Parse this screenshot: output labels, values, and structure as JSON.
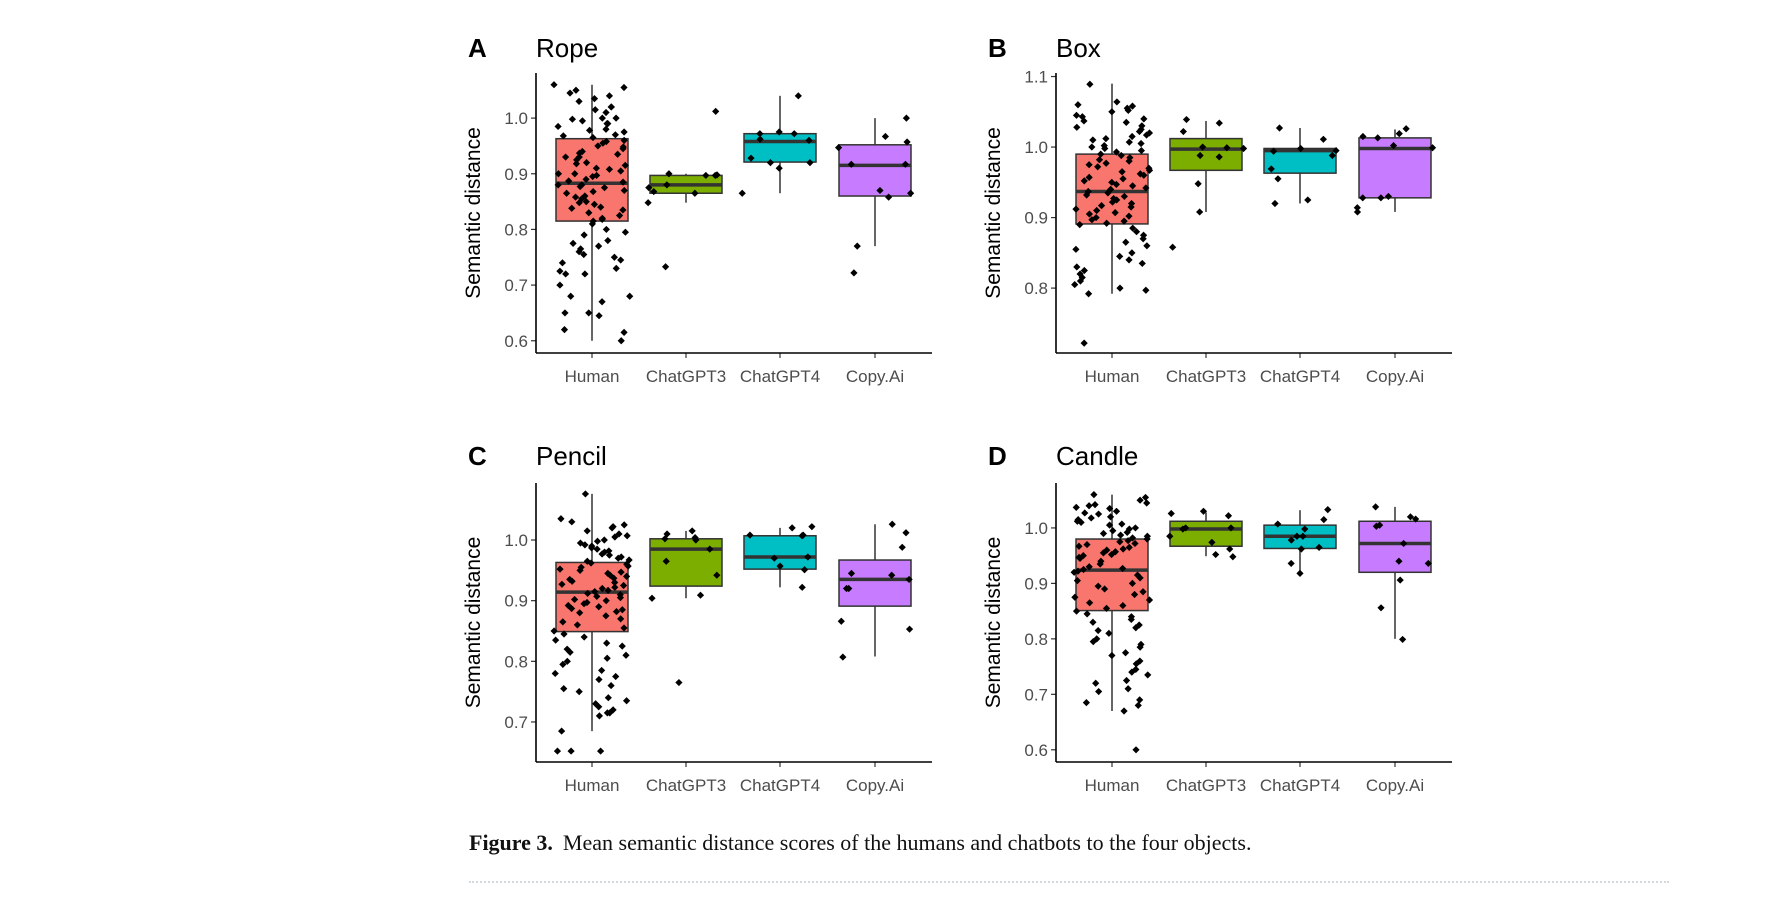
{
  "caption": {
    "label": "Figure 3.",
    "text": "Mean semantic distance scores of the humans and chatbots to the four objects."
  },
  "colors": {
    "Human": "#F8766D",
    "ChatGPT3": "#7CAE00",
    "ChatGPT4": "#00BFC4",
    "Copy.Ai": "#C77CFF"
  },
  "chart_data": [
    {
      "type": "box",
      "panel": "A",
      "title": "Rope",
      "ylabel": "Semantic distance",
      "xlabel": "",
      "categories": [
        "Human",
        "ChatGPT3",
        "ChatGPT4",
        "Copy.Ai"
      ],
      "ylim": [
        0.578,
        1.081
      ],
      "yticks": [
        "0.6",
        "0.7",
        "0.8",
        "0.9",
        "1.0"
      ],
      "boxes": [
        {
          "q1": 0.815,
          "median": 0.883,
          "q3": 0.963,
          "whisker_low": 0.6,
          "whisker_high": 1.06
        },
        {
          "q1": 0.865,
          "median": 0.88,
          "q3": 0.897,
          "whisker_low": 0.848,
          "whisker_high": 0.9
        },
        {
          "q1": 0.921,
          "median": 0.958,
          "q3": 0.972,
          "whisker_low": 0.865,
          "whisker_high": 1.04
        },
        {
          "q1": 0.86,
          "median": 0.915,
          "q3": 0.952,
          "whisker_low": 0.77,
          "whisker_high": 1.0
        }
      ],
      "points": [
        [
          1.06,
          1.055,
          1.05,
          1.045,
          1.04,
          1.035,
          1.03,
          1.02,
          1.02,
          1.015,
          1.01,
          1.0,
          1.0,
          0.998,
          0.995,
          0.99,
          0.99,
          0.985,
          0.98,
          0.978,
          0.975,
          0.97,
          0.968,
          0.965,
          0.96,
          0.958,
          0.955,
          0.95,
          0.948,
          0.945,
          0.94,
          0.937,
          0.935,
          0.93,
          0.93,
          0.925,
          0.92,
          0.918,
          0.915,
          0.91,
          0.908,
          0.905,
          0.9,
          0.9,
          0.897,
          0.895,
          0.89,
          0.887,
          0.885,
          0.88,
          0.88,
          0.877,
          0.875,
          0.87,
          0.868,
          0.865,
          0.86,
          0.858,
          0.855,
          0.85,
          0.848,
          0.845,
          0.84,
          0.838,
          0.835,
          0.83,
          0.825,
          0.82,
          0.818,
          0.815,
          0.81,
          0.8,
          0.795,
          0.79,
          0.78,
          0.775,
          0.77,
          0.765,
          0.76,
          0.755,
          0.75,
          0.745,
          0.74,
          0.73,
          0.725,
          0.72,
          0.72,
          0.7,
          0.68,
          0.68,
          0.67,
          0.65,
          0.65,
          0.645,
          0.62,
          0.615,
          0.6
        ],
        [
          1.012,
          0.897,
          0.898,
          0.897,
          0.9,
          0.875,
          0.88,
          0.868,
          0.848,
          0.865,
          0.733
        ],
        [
          1.04,
          0.975,
          0.972,
          0.962,
          0.96,
          0.972,
          0.92,
          0.92,
          0.928,
          0.91,
          0.865
        ],
        [
          1.0,
          0.967,
          0.957,
          0.947,
          0.917,
          0.917,
          0.865,
          0.87,
          0.858,
          0.77,
          0.722
        ]
      ]
    },
    {
      "type": "box",
      "panel": "B",
      "title": "Box",
      "ylabel": "Semantic distance",
      "xlabel": "",
      "categories": [
        "Human",
        "ChatGPT3",
        "ChatGPT4",
        "Copy.Ai"
      ],
      "ylim": [
        0.708,
        1.105
      ],
      "yticks": [
        "0.8",
        "0.9",
        "1.0",
        "1.1"
      ],
      "boxes": [
        {
          "q1": 0.891,
          "median": 0.937,
          "q3": 0.99,
          "whisker_low": 0.792,
          "whisker_high": 1.09
        },
        {
          "q1": 0.967,
          "median": 0.997,
          "q3": 1.012,
          "whisker_low": 0.908,
          "whisker_high": 1.037
        },
        {
          "q1": 0.963,
          "median": 0.995,
          "q3": 0.998,
          "whisker_low": 0.92,
          "whisker_high": 1.027
        },
        {
          "q1": 0.928,
          "median": 0.998,
          "q3": 1.013,
          "whisker_low": 0.908,
          "whisker_high": 1.025
        }
      ],
      "points": [
        [
          1.089,
          1.064,
          1.06,
          1.058,
          1.055,
          1.052,
          1.05,
          1.045,
          1.043,
          1.04,
          1.037,
          1.035,
          1.03,
          1.028,
          1.025,
          1.022,
          1.02,
          1.017,
          1.015,
          1.012,
          1.01,
          1.007,
          1.005,
          1.002,
          1.0,
          0.998,
          0.995,
          0.993,
          0.99,
          0.988,
          0.985,
          0.982,
          0.98,
          0.977,
          0.975,
          0.972,
          0.97,
          0.967,
          0.965,
          0.962,
          0.96,
          0.957,
          0.955,
          0.952,
          0.95,
          0.947,
          0.945,
          0.942,
          0.94,
          0.937,
          0.935,
          0.932,
          0.93,
          0.927,
          0.925,
          0.922,
          0.92,
          0.917,
          0.915,
          0.912,
          0.91,
          0.907,
          0.905,
          0.902,
          0.9,
          0.897,
          0.895,
          0.892,
          0.89,
          0.885,
          0.88,
          0.875,
          0.87,
          0.865,
          0.86,
          0.855,
          0.85,
          0.845,
          0.84,
          0.835,
          0.83,
          0.825,
          0.82,
          0.815,
          0.81,
          0.805,
          0.8,
          0.797,
          0.792,
          0.722
        ],
        [
          1.022,
          1.034,
          1.039,
          1.0,
          0.998,
          0.988,
          0.986,
          0.999,
          0.948,
          0.908,
          0.858
        ],
        [
          1.027,
          1.011,
          0.995,
          0.994,
          0.988,
          0.998,
          0.969,
          0.955,
          0.925,
          0.92
        ],
        [
          1.015,
          1.013,
          1.026,
          1.019,
          1.002,
          0.999,
          0.928,
          0.93,
          0.928,
          0.914,
          0.908
        ]
      ]
    },
    {
      "type": "box",
      "panel": "C",
      "title": "Pencil",
      "ylabel": "Semantic distance",
      "xlabel": "",
      "categories": [
        "Human",
        "ChatGPT3",
        "ChatGPT4",
        "Copy.Ai"
      ],
      "ylim": [
        0.634,
        1.094
      ],
      "yticks": [
        "0.7",
        "0.8",
        "0.9",
        "1.0"
      ],
      "boxes": [
        {
          "q1": 0.849,
          "median": 0.914,
          "q3": 0.963,
          "whisker_low": 0.685,
          "whisker_high": 1.076
        },
        {
          "q1": 0.924,
          "median": 0.985,
          "q3": 1.002,
          "whisker_low": 0.904,
          "whisker_high": 1.015
        },
        {
          "q1": 0.952,
          "median": 0.972,
          "q3": 1.007,
          "whisker_low": 0.922,
          "whisker_high": 1.02
        },
        {
          "q1": 0.891,
          "median": 0.935,
          "q3": 0.967,
          "whisker_low": 0.808,
          "whisker_high": 1.026
        }
      ],
      "points": [
        [
          1.076,
          1.035,
          1.03,
          1.025,
          1.022,
          1.02,
          1.015,
          1.01,
          1.007,
          1.005,
          1.0,
          0.998,
          0.995,
          0.992,
          0.99,
          0.987,
          0.985,
          0.982,
          0.98,
          0.977,
          0.975,
          0.972,
          0.97,
          0.967,
          0.965,
          0.962,
          0.96,
          0.957,
          0.955,
          0.952,
          0.95,
          0.947,
          0.945,
          0.942,
          0.94,
          0.937,
          0.935,
          0.932,
          0.93,
          0.927,
          0.925,
          0.922,
          0.92,
          0.917,
          0.915,
          0.912,
          0.91,
          0.907,
          0.905,
          0.902,
          0.9,
          0.897,
          0.895,
          0.892,
          0.89,
          0.887,
          0.885,
          0.882,
          0.88,
          0.875,
          0.87,
          0.865,
          0.86,
          0.855,
          0.85,
          0.845,
          0.84,
          0.835,
          0.83,
          0.825,
          0.82,
          0.815,
          0.81,
          0.805,
          0.8,
          0.795,
          0.785,
          0.78,
          0.775,
          0.77,
          0.76,
          0.755,
          0.75,
          0.74,
          0.735,
          0.73,
          0.725,
          0.72,
          0.715,
          0.715,
          0.71,
          0.685,
          0.652,
          0.652,
          0.652
        ],
        [
          1.015,
          1.01,
          1.002,
          1.004,
          1.0,
          0.985,
          0.965,
          0.942,
          0.904,
          0.909,
          0.765
        ],
        [
          0.922,
          1.02,
          1.008,
          1.008,
          1.022,
          0.957,
          0.951,
          0.97,
          0.972,
          1.007
        ],
        [
          1.026,
          1.012,
          0.988,
          0.945,
          0.942,
          0.92,
          0.92,
          0.935,
          0.853,
          0.866,
          0.807
        ]
      ]
    },
    {
      "type": "box",
      "panel": "D",
      "title": "Candle",
      "ylabel": "Semantic distance",
      "xlabel": "",
      "categories": [
        "Human",
        "ChatGPT3",
        "ChatGPT4",
        "Copy.Ai"
      ],
      "ylim": [
        0.578,
        1.081
      ],
      "yticks": [
        "0.6",
        "0.7",
        "0.8",
        "0.9",
        "1.0"
      ],
      "boxes": [
        {
          "q1": 0.851,
          "median": 0.924,
          "q3": 0.98,
          "whisker_low": 0.67,
          "whisker_high": 1.06
        },
        {
          "q1": 0.967,
          "median": 0.998,
          "q3": 1.012,
          "whisker_low": 0.949,
          "whisker_high": 1.028
        },
        {
          "q1": 0.963,
          "median": 0.985,
          "q3": 1.005,
          "whisker_low": 0.92,
          "whisker_high": 1.032
        },
        {
          "q1": 0.92,
          "median": 0.972,
          "q3": 1.012,
          "whisker_low": 0.8,
          "whisker_high": 1.038
        }
      ],
      "points": [
        [
          1.06,
          1.055,
          1.05,
          1.045,
          1.042,
          1.04,
          1.037,
          1.035,
          1.03,
          1.027,
          1.025,
          1.02,
          1.018,
          1.015,
          1.012,
          1.01,
          1.007,
          1.005,
          1.0,
          0.998,
          0.995,
          0.992,
          0.99,
          0.987,
          0.985,
          0.982,
          0.98,
          0.977,
          0.975,
          0.972,
          0.97,
          0.967,
          0.965,
          0.962,
          0.96,
          0.957,
          0.955,
          0.952,
          0.95,
          0.947,
          0.945,
          0.94,
          0.935,
          0.93,
          0.927,
          0.925,
          0.922,
          0.92,
          0.915,
          0.91,
          0.905,
          0.9,
          0.895,
          0.89,
          0.885,
          0.88,
          0.875,
          0.87,
          0.865,
          0.86,
          0.855,
          0.85,
          0.845,
          0.84,
          0.835,
          0.83,
          0.825,
          0.82,
          0.815,
          0.81,
          0.8,
          0.795,
          0.79,
          0.785,
          0.775,
          0.77,
          0.76,
          0.755,
          0.745,
          0.74,
          0.735,
          0.725,
          0.72,
          0.71,
          0.705,
          0.69,
          0.685,
          0.68,
          0.67,
          0.6
        ],
        [
          1.03,
          1.022,
          1.0,
          1.026,
          1.0,
          0.998,
          0.985,
          0.974,
          0.962,
          0.952,
          0.948
        ],
        [
          1.033,
          1.015,
          1.007,
          0.998,
          0.985,
          0.978,
          0.985,
          0.965,
          0.962,
          0.936,
          0.918
        ],
        [
          1.038,
          1.02,
          1.016,
          1.005,
          1.003,
          0.972,
          0.94,
          0.936,
          0.906,
          0.856,
          0.799
        ]
      ]
    }
  ]
}
